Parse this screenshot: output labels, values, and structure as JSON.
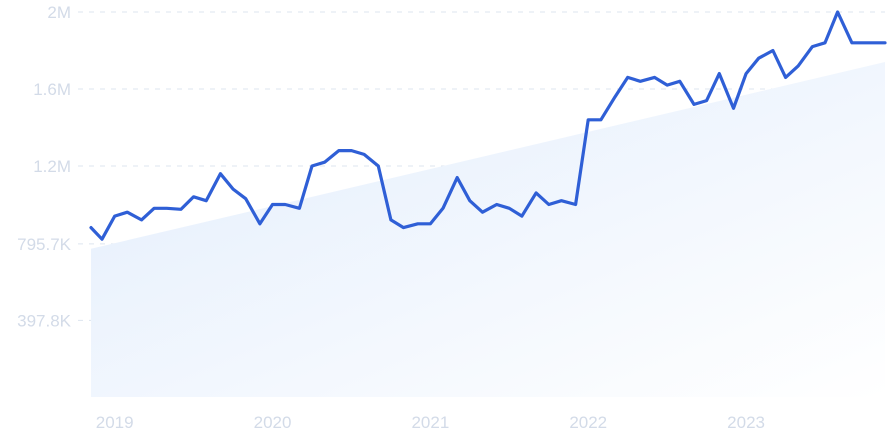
{
  "chart_data": {
    "type": "line",
    "title": "",
    "xlabel": "",
    "ylabel": "",
    "x_ticks": [
      "2019",
      "2020",
      "2021",
      "2022",
      "2023"
    ],
    "y_ticks": [
      "397.8K",
      "795.7K",
      "1.2M",
      "1.6M",
      "2M"
    ],
    "y_tick_values": [
      397800,
      795700,
      1200000,
      1600000,
      2000000
    ],
    "ylim": [
      0,
      2000000
    ],
    "xlim": [
      2018.85,
      2023.88
    ],
    "grid": "horizontal dashed",
    "colors": {
      "line": "#2f5fd6",
      "trend_fill_start": "#e2edfc",
      "trend_fill_end": "#ffffff",
      "grid": "#dde5ef",
      "tick_text": "#d3dbe8"
    },
    "trend": {
      "x": [
        2018.85,
        2023.88
      ],
      "y": [
        770000,
        1740000
      ]
    },
    "series": [
      {
        "x": [
          2018.85,
          2018.92,
          2019.0,
          2019.08,
          2019.17,
          2019.25,
          2019.33,
          2019.42,
          2019.5,
          2019.58,
          2019.67,
          2019.75,
          2019.83,
          2019.92,
          2020.0,
          2020.08,
          2020.17,
          2020.25,
          2020.33,
          2020.42,
          2020.5,
          2020.58,
          2020.67,
          2020.75,
          2020.83,
          2020.92,
          2021.0,
          2021.08,
          2021.17,
          2021.25,
          2021.33,
          2021.42,
          2021.5,
          2021.58,
          2021.67,
          2021.75,
          2021.83,
          2021.92,
          2022.0,
          2022.08,
          2022.17,
          2022.25,
          2022.33,
          2022.42,
          2022.5,
          2022.58,
          2022.67,
          2022.75,
          2022.83,
          2022.92,
          2023.0,
          2023.08,
          2023.17,
          2023.25,
          2023.33,
          2023.42,
          2023.5,
          2023.58,
          2023.67,
          2023.75,
          2023.83,
          2023.88
        ],
        "values": [
          880000,
          820000,
          940000,
          960000,
          920000,
          980000,
          980000,
          975000,
          1040000,
          1020000,
          1160000,
          1080000,
          1030000,
          900000,
          1000000,
          1000000,
          980000,
          1200000,
          1220000,
          1280000,
          1280000,
          1260000,
          1200000,
          920000,
          880000,
          900000,
          900000,
          980000,
          1140000,
          1020000,
          960000,
          1000000,
          980000,
          940000,
          1060000,
          1000000,
          1020000,
          1000000,
          1440000,
          1440000,
          1560000,
          1660000,
          1640000,
          1660000,
          1620000,
          1640000,
          1520000,
          1540000,
          1680000,
          1500000,
          1680000,
          1760000,
          1800000,
          1660000,
          1720000,
          1820000,
          1840000,
          2000000,
          1840000,
          1840000,
          1840000,
          1840000
        ]
      }
    ]
  }
}
